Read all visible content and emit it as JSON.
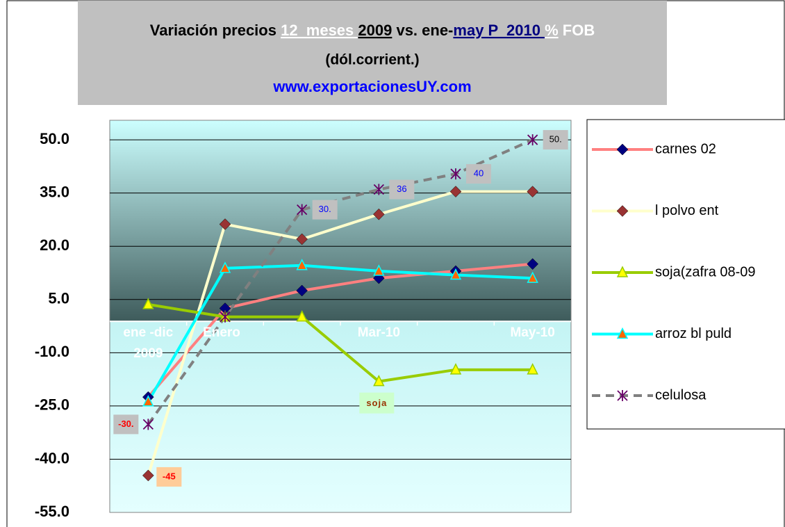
{
  "chart_data": {
    "type": "line",
    "title": [
      "Variación precios ",
      "12  meses ",
      "2009",
      " vs. ene-",
      "may P  2010 ",
      "%",
      " FOB"
    ],
    "subtitle": "(dól.corrient.)",
    "source": "www.exportacionesUY.com",
    "categories": [
      "ene -dic\n2009",
      "Enero",
      null,
      "Mar-10",
      null,
      "May-10"
    ],
    "ylim": [
      -55,
      55.5
    ],
    "yticks": [
      {
        "value": -55,
        "label": "-55.0"
      },
      {
        "value": -40,
        "label": "-40.0"
      },
      {
        "value": -25,
        "label": "-25.0"
      },
      {
        "value": -10,
        "label": "-10.0"
      },
      {
        "value": 5,
        "label": "5.0"
      },
      {
        "value": 20,
        "label": "20.0"
      },
      {
        "value": 35,
        "label": "35.0"
      },
      {
        "value": 50,
        "label": "50.0"
      }
    ],
    "grid": true,
    "legend": "right",
    "series": [
      {
        "name": "carnes 02",
        "color": "#ff8080",
        "marker": "diamond",
        "marker_color": "#000080",
        "values": [
          -22.5,
          2.5,
          7.5,
          11,
          13,
          15
        ]
      },
      {
        "name": "l polvo ent",
        "color": "#ffffcc",
        "marker": "diamond",
        "marker_color": "#993333",
        "values": [
          -44.6,
          26.2,
          22,
          29,
          35.4,
          35.4
        ],
        "value_labels": [
          "-45",
          null,
          null,
          null,
          null,
          null
        ]
      },
      {
        "name": "soja(zafra 08-09",
        "color": "#99cc00",
        "marker": "triangle",
        "marker_color": "#ffff00",
        "values": [
          3.6,
          0.1,
          0.1,
          -18.1,
          -14.8,
          -14.8
        ]
      },
      {
        "name": "arroz bl puld",
        "color": "#00ffff",
        "marker": "triangle",
        "marker_color": "#ff6600",
        "values": [
          -23.8,
          13.8,
          14.6,
          13,
          11.9,
          11
        ]
      },
      {
        "name": "celulosa",
        "color": "#808080",
        "marker": "star",
        "marker_color": "#660066",
        "dashed": true,
        "values": [
          -30.2,
          0.1,
          30.3,
          36,
          40.4,
          50
        ],
        "value_labels": [
          "-30.",
          null,
          "30.",
          "36",
          "40",
          "50."
        ]
      }
    ],
    "annotations": [
      {
        "text": "soja"
      }
    ]
  }
}
